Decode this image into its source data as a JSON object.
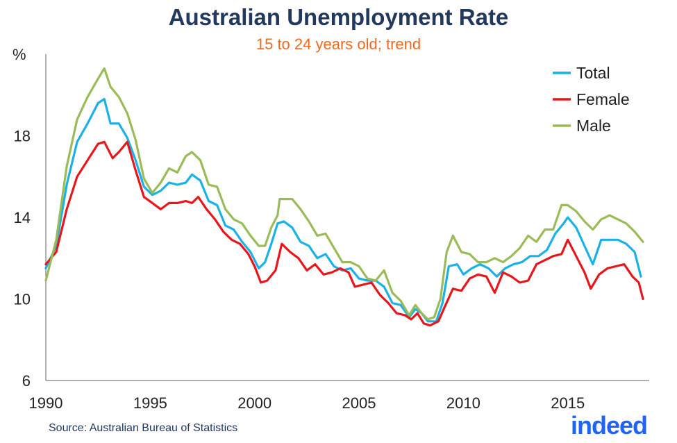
{
  "chart_data": {
    "type": "line",
    "title": "Australian Unemployment Rate",
    "subtitle": "15 to 24 years old; trend",
    "ylabel": "%",
    "xlabel": "",
    "ylim": [
      6,
      22
    ],
    "xlim": [
      1990,
      2018.9
    ],
    "yticks": [
      6,
      10,
      14,
      18
    ],
    "xticks": [
      1990,
      1995,
      2000,
      2005,
      2010,
      2015
    ],
    "grid": false,
    "legend_position": "top-right",
    "source": "Source: Australian Bureau of Statistics",
    "series": [
      {
        "name": "Total",
        "color": "#1bb1e7",
        "points": [
          [
            1990.0,
            11.5
          ],
          [
            1990.5,
            12.6
          ],
          [
            1991.0,
            15.6
          ],
          [
            1991.5,
            17.7
          ],
          [
            1992.0,
            18.6
          ],
          [
            1992.5,
            19.6
          ],
          [
            1992.8,
            19.8
          ],
          [
            1993.1,
            18.6
          ],
          [
            1993.5,
            18.6
          ],
          [
            1993.9,
            17.9
          ],
          [
            1994.3,
            16.8
          ],
          [
            1994.7,
            15.5
          ],
          [
            1995.1,
            15.1
          ],
          [
            1995.5,
            15.3
          ],
          [
            1995.9,
            15.7
          ],
          [
            1996.3,
            15.6
          ],
          [
            1996.7,
            15.7
          ],
          [
            1997.0,
            16.1
          ],
          [
            1997.4,
            15.8
          ],
          [
            1997.8,
            14.8
          ],
          [
            1998.2,
            14.6
          ],
          [
            1998.6,
            13.6
          ],
          [
            1999.0,
            13.4
          ],
          [
            1999.4,
            12.8
          ],
          [
            1999.8,
            12.3
          ],
          [
            2000.2,
            11.5
          ],
          [
            2000.5,
            11.8
          ],
          [
            2000.8,
            12.7
          ],
          [
            2001.1,
            13.7
          ],
          [
            2001.4,
            13.8
          ],
          [
            2001.8,
            13.5
          ],
          [
            2002.2,
            12.8
          ],
          [
            2002.6,
            12.6
          ],
          [
            2003.0,
            12.0
          ],
          [
            2003.4,
            12.2
          ],
          [
            2003.8,
            11.6
          ],
          [
            2004.2,
            11.4
          ],
          [
            2004.6,
            11.5
          ],
          [
            2005.0,
            11.0
          ],
          [
            2005.4,
            10.9
          ],
          [
            2005.8,
            10.9
          ],
          [
            2006.2,
            10.6
          ],
          [
            2006.6,
            9.8
          ],
          [
            2007.0,
            9.7
          ],
          [
            2007.4,
            9.1
          ],
          [
            2007.7,
            9.5
          ],
          [
            2008.0,
            9.3
          ],
          [
            2008.3,
            8.9
          ],
          [
            2008.7,
            8.9
          ],
          [
            2009.0,
            9.8
          ],
          [
            2009.3,
            11.6
          ],
          [
            2009.7,
            11.7
          ],
          [
            2010.0,
            11.2
          ],
          [
            2010.4,
            11.5
          ],
          [
            2010.8,
            11.7
          ],
          [
            2011.2,
            11.5
          ],
          [
            2011.6,
            11.1
          ],
          [
            2012.0,
            11.5
          ],
          [
            2012.4,
            11.7
          ],
          [
            2012.8,
            11.8
          ],
          [
            2013.2,
            12.1
          ],
          [
            2013.6,
            12.1
          ],
          [
            2014.0,
            12.4
          ],
          [
            2014.4,
            13.2
          ],
          [
            2014.8,
            13.7
          ],
          [
            2015.0,
            14.0
          ],
          [
            2015.4,
            13.5
          ],
          [
            2015.8,
            12.6
          ],
          [
            2016.2,
            11.7
          ],
          [
            2016.6,
            12.9
          ],
          [
            2017.0,
            12.9
          ],
          [
            2017.4,
            12.9
          ],
          [
            2017.8,
            12.7
          ],
          [
            2018.2,
            12.3
          ],
          [
            2018.5,
            11.1
          ]
        ]
      },
      {
        "name": "Female",
        "color": "#e8161b",
        "points": [
          [
            1990.0,
            11.7
          ],
          [
            1990.5,
            12.3
          ],
          [
            1991.0,
            14.4
          ],
          [
            1991.5,
            16.0
          ],
          [
            1992.0,
            16.8
          ],
          [
            1992.5,
            17.6
          ],
          [
            1992.8,
            17.7
          ],
          [
            1993.2,
            16.9
          ],
          [
            1993.5,
            17.2
          ],
          [
            1993.9,
            17.7
          ],
          [
            1994.3,
            16.3
          ],
          [
            1994.7,
            15.0
          ],
          [
            1995.1,
            14.7
          ],
          [
            1995.5,
            14.4
          ],
          [
            1995.9,
            14.7
          ],
          [
            1996.3,
            14.7
          ],
          [
            1996.7,
            14.8
          ],
          [
            1997.0,
            14.7
          ],
          [
            1997.3,
            15.0
          ],
          [
            1997.7,
            14.4
          ],
          [
            1998.1,
            13.9
          ],
          [
            1998.5,
            13.3
          ],
          [
            1998.9,
            12.9
          ],
          [
            1999.3,
            12.7
          ],
          [
            1999.7,
            12.2
          ],
          [
            2000.0,
            11.6
          ],
          [
            2000.3,
            10.8
          ],
          [
            2000.6,
            10.9
          ],
          [
            2001.0,
            11.4
          ],
          [
            2001.3,
            12.7
          ],
          [
            2001.7,
            12.3
          ],
          [
            2002.1,
            12.0
          ],
          [
            2002.5,
            11.4
          ],
          [
            2002.9,
            11.7
          ],
          [
            2003.3,
            11.2
          ],
          [
            2003.7,
            11.3
          ],
          [
            2004.1,
            11.5
          ],
          [
            2004.5,
            11.3
          ],
          [
            2004.8,
            10.6
          ],
          [
            2005.2,
            10.7
          ],
          [
            2005.6,
            10.8
          ],
          [
            2006.0,
            10.2
          ],
          [
            2006.4,
            9.8
          ],
          [
            2006.8,
            9.3
          ],
          [
            2007.2,
            9.2
          ],
          [
            2007.5,
            9.0
          ],
          [
            2007.8,
            9.3
          ],
          [
            2008.1,
            8.8
          ],
          [
            2008.4,
            8.7
          ],
          [
            2008.8,
            8.9
          ],
          [
            2009.1,
            9.6
          ],
          [
            2009.5,
            10.5
          ],
          [
            2009.9,
            10.4
          ],
          [
            2010.3,
            11.0
          ],
          [
            2010.7,
            11.2
          ],
          [
            2011.1,
            11.1
          ],
          [
            2011.5,
            10.3
          ],
          [
            2011.9,
            11.3
          ],
          [
            2012.3,
            11.1
          ],
          [
            2012.7,
            10.8
          ],
          [
            2013.1,
            10.9
          ],
          [
            2013.5,
            11.7
          ],
          [
            2013.9,
            11.9
          ],
          [
            2014.3,
            12.1
          ],
          [
            2014.7,
            12.2
          ],
          [
            2015.0,
            12.9
          ],
          [
            2015.4,
            12.1
          ],
          [
            2015.8,
            11.3
          ],
          [
            2016.1,
            10.5
          ],
          [
            2016.5,
            11.2
          ],
          [
            2016.9,
            11.5
          ],
          [
            2017.3,
            11.6
          ],
          [
            2017.7,
            11.7
          ],
          [
            2018.1,
            11.1
          ],
          [
            2018.4,
            10.8
          ],
          [
            2018.6,
            10.0
          ]
        ]
      },
      {
        "name": "Male",
        "color": "#9bbb59",
        "points": [
          [
            1990.0,
            10.9
          ],
          [
            1990.5,
            12.9
          ],
          [
            1991.0,
            16.5
          ],
          [
            1991.5,
            18.8
          ],
          [
            1992.0,
            19.9
          ],
          [
            1992.5,
            20.8
          ],
          [
            1992.8,
            21.3
          ],
          [
            1993.1,
            20.4
          ],
          [
            1993.5,
            19.9
          ],
          [
            1993.9,
            19.1
          ],
          [
            1994.3,
            17.8
          ],
          [
            1994.7,
            15.9
          ],
          [
            1995.1,
            15.2
          ],
          [
            1995.5,
            15.7
          ],
          [
            1995.9,
            16.4
          ],
          [
            1996.3,
            16.2
          ],
          [
            1996.7,
            17.0
          ],
          [
            1997.0,
            17.2
          ],
          [
            1997.4,
            16.8
          ],
          [
            1997.8,
            15.6
          ],
          [
            1998.2,
            15.5
          ],
          [
            1998.6,
            14.4
          ],
          [
            1999.0,
            13.9
          ],
          [
            1999.4,
            13.7
          ],
          [
            1999.8,
            13.1
          ],
          [
            2000.2,
            12.6
          ],
          [
            2000.5,
            12.6
          ],
          [
            2000.8,
            13.5
          ],
          [
            2001.1,
            14.1
          ],
          [
            2001.2,
            14.9
          ],
          [
            2001.8,
            14.9
          ],
          [
            2002.2,
            14.4
          ],
          [
            2002.6,
            13.8
          ],
          [
            2003.0,
            13.1
          ],
          [
            2003.4,
            13.2
          ],
          [
            2003.8,
            12.5
          ],
          [
            2004.2,
            11.8
          ],
          [
            2004.6,
            11.8
          ],
          [
            2005.0,
            11.6
          ],
          [
            2005.4,
            11.0
          ],
          [
            2005.8,
            10.9
          ],
          [
            2006.2,
            11.4
          ],
          [
            2006.6,
            10.3
          ],
          [
            2007.0,
            9.9
          ],
          [
            2007.4,
            9.2
          ],
          [
            2007.7,
            9.7
          ],
          [
            2008.0,
            9.3
          ],
          [
            2008.3,
            9.0
          ],
          [
            2008.6,
            9.1
          ],
          [
            2008.9,
            10.0
          ],
          [
            2009.2,
            12.3
          ],
          [
            2009.5,
            13.1
          ],
          [
            2009.9,
            12.3
          ],
          [
            2010.3,
            12.2
          ],
          [
            2010.7,
            11.8
          ],
          [
            2011.1,
            11.8
          ],
          [
            2011.5,
            12.0
          ],
          [
            2011.9,
            11.8
          ],
          [
            2012.3,
            12.1
          ],
          [
            2012.7,
            12.5
          ],
          [
            2013.1,
            13.1
          ],
          [
            2013.5,
            12.8
          ],
          [
            2013.9,
            13.4
          ],
          [
            2014.3,
            13.4
          ],
          [
            2014.7,
            14.6
          ],
          [
            2015.0,
            14.6
          ],
          [
            2015.4,
            14.3
          ],
          [
            2015.8,
            13.8
          ],
          [
            2016.2,
            13.4
          ],
          [
            2016.6,
            13.9
          ],
          [
            2017.0,
            14.1
          ],
          [
            2017.4,
            13.9
          ],
          [
            2017.8,
            13.7
          ],
          [
            2018.2,
            13.3
          ],
          [
            2018.6,
            12.8
          ]
        ]
      }
    ]
  },
  "brand": {
    "logo_text": "indeed",
    "logo_color": "#2164f3"
  }
}
